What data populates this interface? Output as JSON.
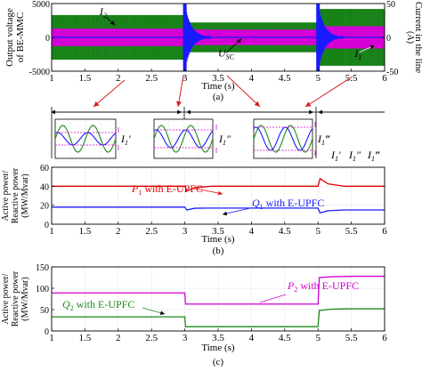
{
  "colors": {
    "green": "#1c8a1c",
    "magenta": "#d400d4",
    "blue": "#1a1aff",
    "red": "#e00000",
    "arrow": "#d42020",
    "frame": "#000000"
  },
  "chart_data": [
    {
      "id": "a",
      "type": "line",
      "panel_label": "(a)",
      "xlabel": "Time (s)",
      "ylabel_left": [
        "Output voltage",
        "of BE-MMC"
      ],
      "ylabel_right": [
        "Current in the line"
      ],
      "right_unit": "(A)",
      "xlim": [
        1,
        6
      ],
      "ylim_left": [
        -5000,
        5000
      ],
      "ylim_right": [
        -50,
        50
      ],
      "xticks": [
        1,
        1.5,
        2,
        2.5,
        3,
        3.5,
        4,
        4.5,
        5,
        5.5,
        6
      ],
      "xtick_labels": [
        "1",
        "1.5",
        "2",
        "2.5",
        "3",
        "3.5",
        "4",
        "4.5",
        "5",
        "5.5",
        "6"
      ],
      "yticks_left": [
        5000,
        0,
        -5000
      ],
      "yticks_left_labels": [
        "5000",
        "0",
        "-5000"
      ],
      "yticks_right": [
        50,
        0,
        -50
      ],
      "yticks_right_labels": [
        "50",
        "0",
        "-50"
      ],
      "green_band": {
        "series": "I2",
        "segments": [
          {
            "x": [
              1,
              3
            ],
            "amp_left": 3300
          },
          {
            "x": [
              3,
              5
            ],
            "amp_left": 2200
          },
          {
            "x": [
              5,
              6
            ],
            "amp_left": 4200
          }
        ]
      },
      "magenta_band": {
        "series": "I1",
        "segments": [
          {
            "x": [
              1,
              3
            ],
            "amp_left": 1300
          },
          {
            "x": [
              3,
              5
            ],
            "amp_left": 1150
          },
          {
            "x": [
              5,
              6
            ],
            "amp_left": 1650
          }
        ]
      },
      "transients": [
        {
          "x": 3.0,
          "peak_left": 5000
        },
        {
          "x": 5.0,
          "peak_left": 5000
        }
      ],
      "annotations": [
        {
          "main": "I",
          "sub": "2",
          "x": 1.72,
          "y": 3300
        },
        {
          "main": "U",
          "sub": "SC",
          "x": 3.5,
          "y": -2800
        },
        {
          "main": "I",
          "sub": "1",
          "x": 5.55,
          "y": -2900
        }
      ]
    },
    {
      "id": "b",
      "type": "line",
      "panel_label": "(b)",
      "xlabel": "Time (s)",
      "ylabel": [
        "Active power/",
        "Reactive power",
        "(MW/Mvar)"
      ],
      "xlim": [
        1,
        6
      ],
      "ylim": [
        0,
        60
      ],
      "xticks": [
        1,
        1.5,
        2,
        2.5,
        3,
        3.5,
        4,
        4.5,
        5,
        5.5,
        6
      ],
      "xtick_labels": [
        "1",
        "1.5",
        "2",
        "2.5",
        "3",
        "3.5",
        "4",
        "4.5",
        "5",
        "5.5",
        "6"
      ],
      "yticks": [
        0,
        20,
        40,
        60
      ],
      "ytick_labels": [
        "0",
        "20",
        "40",
        "60"
      ],
      "grid": true,
      "series": [
        {
          "name": "P1 with E-UPFC",
          "main": "P",
          "sub": "1",
          "rest": " with E-UPFC",
          "color": "red",
          "x": [
            1,
            3,
            3.03,
            3.15,
            3.4,
            5,
            5.03,
            5.15,
            5.4,
            6
          ],
          "y": [
            40,
            40,
            35,
            38.5,
            40,
            40,
            48,
            42.5,
            40,
            40
          ]
        },
        {
          "name": "Q1 with E-UPFC",
          "main": "Q",
          "sub": "1",
          "rest": " with E-UPFC",
          "color": "blue",
          "x": [
            1,
            3,
            3.03,
            3.15,
            3.4,
            5,
            5.03,
            5.15,
            5.4,
            6
          ],
          "y": [
            18,
            18,
            15,
            16.8,
            17,
            17,
            12,
            14.2,
            15,
            15
          ]
        }
      ]
    },
    {
      "id": "c",
      "type": "line",
      "panel_label": "(c)",
      "xlabel": "Time (s)",
      "ylabel": [
        "Active power/",
        "Reactive power",
        "(MW/Mvar)"
      ],
      "xlim": [
        1,
        6
      ],
      "ylim": [
        0,
        150
      ],
      "xticks": [
        1,
        1.5,
        2,
        2.5,
        3,
        3.5,
        4,
        4.5,
        5,
        5.5,
        6
      ],
      "xtick_labels": [
        "1",
        "1.5",
        "2",
        "2.5",
        "3",
        "3.5",
        "4",
        "4.5",
        "5",
        "5.5",
        "6"
      ],
      "yticks": [
        0,
        50,
        100,
        150
      ],
      "ytick_labels": [
        "0",
        "50",
        "100",
        "150"
      ],
      "grid": true,
      "series": [
        {
          "name": "P2 with E-UPFC",
          "main": "P",
          "sub": "2",
          "rest": " with E-UPFC",
          "color": "magenta",
          "x": [
            1,
            3,
            3.01,
            3.1,
            5,
            5.02,
            5.2,
            5.5,
            6
          ],
          "y": [
            89,
            89,
            63,
            63,
            63,
            125,
            127,
            128,
            128
          ]
        },
        {
          "name": "Q2 with E-UPFC",
          "main": "Q",
          "sub": "2",
          "rest": " with E-UPFC",
          "color": "green",
          "x": [
            1,
            3,
            3.01,
            3.1,
            5,
            5.02,
            5.2,
            5.5,
            6
          ],
          "y": [
            33,
            33,
            10,
            10,
            10,
            48,
            51,
            52,
            52
          ]
        }
      ]
    }
  ],
  "zoom_strip": {
    "boxes": [
      {
        "main": "I",
        "sub": "1",
        "primes": "′"
      },
      {
        "main": "I",
        "sub": "1",
        "primes": "″"
      },
      {
        "main": "I",
        "sub": "1",
        "primes": "‴"
      }
    ],
    "legend": [
      {
        "main": "I",
        "sub": "1",
        "primes": "′"
      },
      {
        "main": "I",
        "sub": "1",
        "primes": "″"
      },
      {
        "main": "I",
        "sub": "1",
        "primes": "‴"
      }
    ]
  }
}
